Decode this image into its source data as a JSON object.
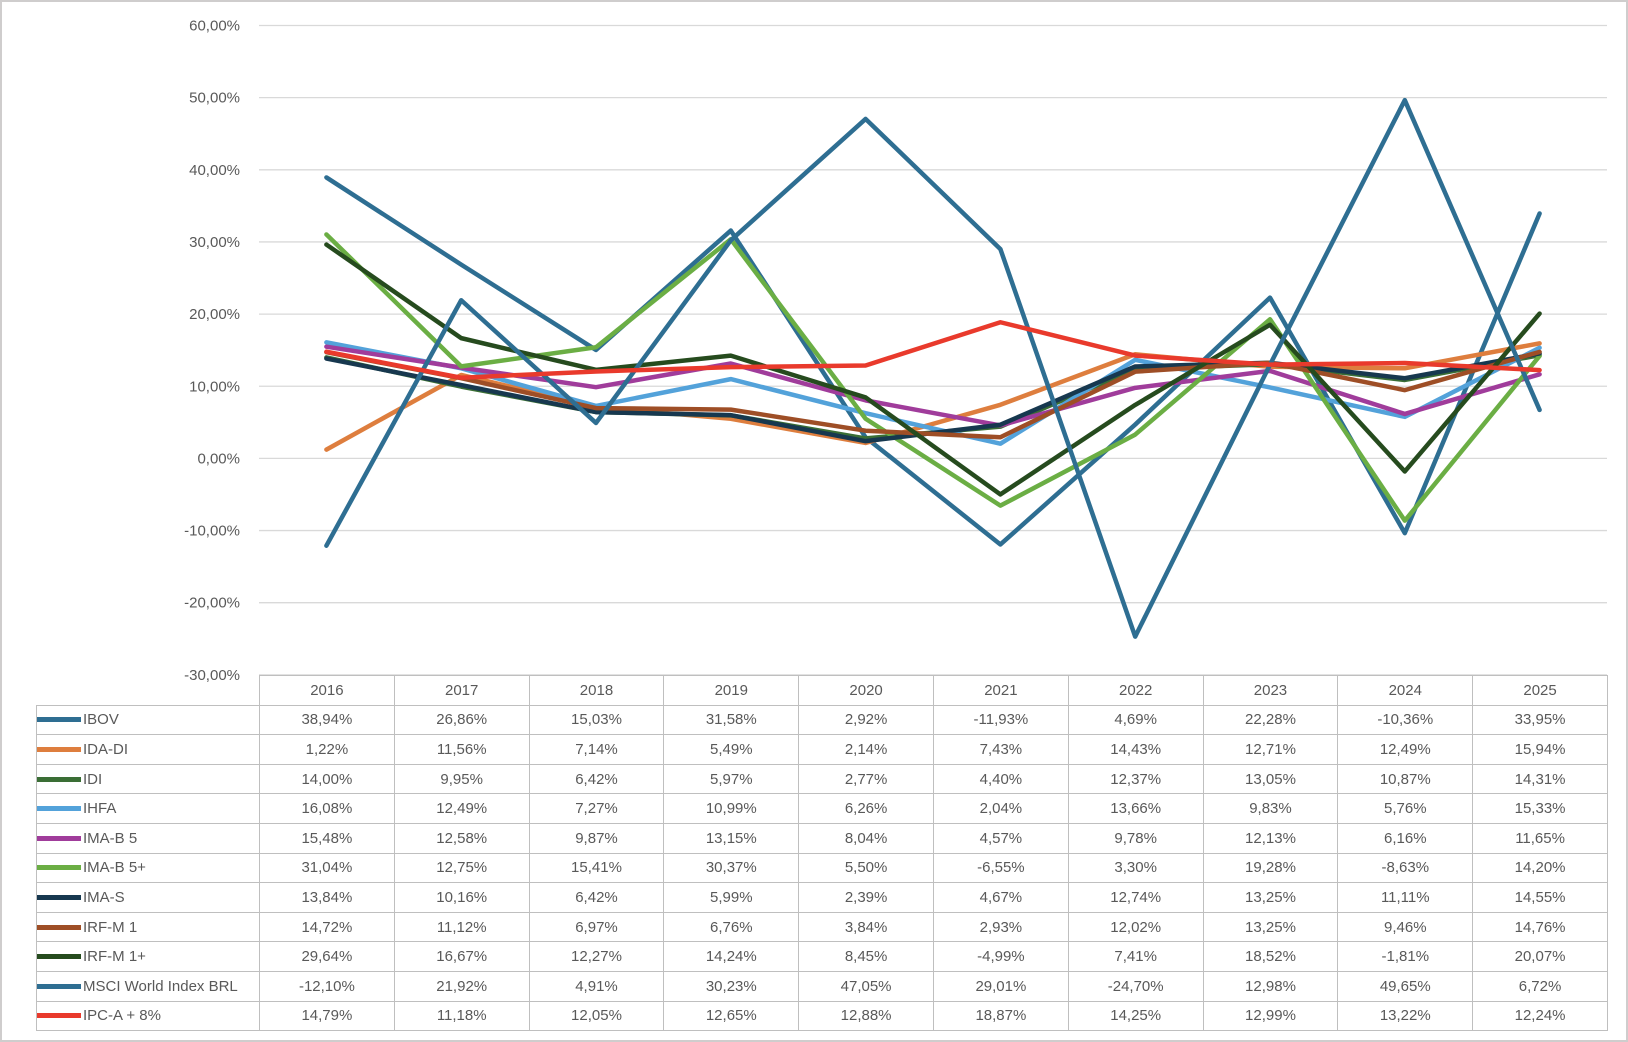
{
  "chart_data": {
    "type": "line",
    "title": "",
    "xlabel": "",
    "ylabel": "",
    "categories": [
      "2016",
      "2017",
      "2018",
      "2019",
      "2020",
      "2021",
      "2022",
      "2023",
      "2024",
      "2025"
    ],
    "series": [
      {
        "name": "IBOV",
        "color": "#2E6E92",
        "values": [
          38.94,
          26.86,
          15.03,
          31.58,
          2.92,
          -11.93,
          4.69,
          22.28,
          -10.36,
          33.95
        ]
      },
      {
        "name": "IDA-DI",
        "color": "#DE7E3E",
        "values": [
          1.22,
          11.56,
          7.14,
          5.49,
          2.14,
          7.43,
          14.43,
          12.71,
          12.49,
          15.94
        ]
      },
      {
        "name": "IDI",
        "color": "#3A6E35",
        "values": [
          14.0,
          9.95,
          6.42,
          5.97,
          2.77,
          4.4,
          12.37,
          13.05,
          10.87,
          14.31
        ]
      },
      {
        "name": "IHFA",
        "color": "#53A2DA",
        "values": [
          16.08,
          12.49,
          7.27,
          10.99,
          6.26,
          2.04,
          13.66,
          9.83,
          5.76,
          15.33
        ]
      },
      {
        "name": "IMA-B 5",
        "color": "#A03C9B",
        "values": [
          15.48,
          12.58,
          9.87,
          13.15,
          8.04,
          4.57,
          9.78,
          12.13,
          6.16,
          11.65
        ]
      },
      {
        "name": "IMA-B 5+",
        "color": "#6BAE44",
        "values": [
          31.04,
          12.75,
          15.41,
          30.37,
          5.5,
          -6.55,
          3.3,
          19.28,
          -8.63,
          14.2
        ]
      },
      {
        "name": "IMA-S",
        "color": "#17384F",
        "values": [
          13.84,
          10.16,
          6.42,
          5.99,
          2.39,
          4.67,
          12.74,
          13.25,
          11.11,
          14.55
        ]
      },
      {
        "name": "IRF-M 1",
        "color": "#9E4E26",
        "values": [
          14.72,
          11.12,
          6.97,
          6.76,
          3.84,
          2.93,
          12.02,
          13.25,
          9.46,
          14.76
        ]
      },
      {
        "name": "IRF-M 1+",
        "color": "#264B1E",
        "values": [
          29.64,
          16.67,
          12.27,
          14.24,
          8.45,
          -4.99,
          7.41,
          18.52,
          -1.81,
          20.07
        ]
      },
      {
        "name": "MSCI World Index BRL",
        "color": "#2E6E92",
        "values": [
          -12.1,
          21.92,
          4.91,
          30.23,
          47.05,
          29.01,
          -24.7,
          12.98,
          49.65,
          6.72
        ]
      },
      {
        "name": "IPC-A + 8%",
        "color": "#E93A2C",
        "values": [
          14.79,
          11.18,
          12.05,
          12.65,
          12.88,
          18.87,
          14.25,
          12.99,
          13.22,
          12.24
        ]
      }
    ],
    "ylim": [
      -30,
      60
    ],
    "y_tick_step": 10,
    "y_tick_labels": [
      "60,00%",
      "50,00%",
      "40,00%",
      "30,00%",
      "20,00%",
      "10,00%",
      "0,00%",
      "-10,00%",
      "-20,00%",
      "-30,00%"
    ],
    "grid": true,
    "legend_position": "data-table-left",
    "number_format": "pt-BR percent with 2 decimals"
  },
  "colors": {
    "gridline": "#D9D9D9",
    "axis_text": "#595959",
    "table_text": "#595959",
    "table_border": "#BFBFBF",
    "frame_border": "#CFCDCD",
    "background": "#FFFFFF"
  }
}
